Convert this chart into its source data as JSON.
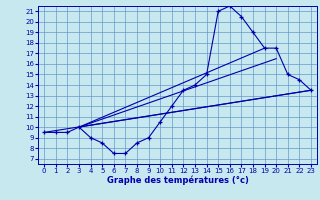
{
  "background_color": "#c8e8f0",
  "grid_color": "#6699cc",
  "line_color": "#0000aa",
  "xlabel": "Graphe des températures (°c)",
  "xlim": [
    -0.5,
    23.5
  ],
  "ylim": [
    6.5,
    21.5
  ],
  "yticks": [
    7,
    8,
    9,
    10,
    11,
    12,
    13,
    14,
    15,
    16,
    17,
    18,
    19,
    20,
    21
  ],
  "xticks": [
    0,
    1,
    2,
    3,
    4,
    5,
    6,
    7,
    8,
    9,
    10,
    11,
    12,
    13,
    14,
    15,
    16,
    17,
    18,
    19,
    20,
    21,
    22,
    23
  ],
  "main_curve": {
    "x": [
      0,
      1,
      2,
      3,
      4,
      5,
      6,
      7,
      8,
      9,
      10,
      11,
      12,
      13,
      14,
      15,
      16,
      17,
      18,
      19,
      20,
      21,
      22,
      23
    ],
    "y": [
      9.5,
      9.5,
      9.5,
      10,
      9.0,
      8.5,
      7.5,
      7.5,
      8.5,
      9.0,
      10.5,
      12,
      13.5,
      14,
      15,
      21,
      21.5,
      20.5,
      19,
      17.5,
      17.5,
      15,
      14.5,
      13.5
    ]
  },
  "lines": [
    {
      "x": [
        0,
        23
      ],
      "y": [
        9.5,
        13.5
      ]
    },
    {
      "x": [
        3,
        20
      ],
      "y": [
        10.0,
        16.5
      ]
    },
    {
      "x": [
        3,
        19
      ],
      "y": [
        10.0,
        17.5
      ]
    },
    {
      "x": [
        3,
        23
      ],
      "y": [
        10.0,
        13.5
      ]
    }
  ],
  "tick_fontsize": 5,
  "xlabel_fontsize": 6
}
